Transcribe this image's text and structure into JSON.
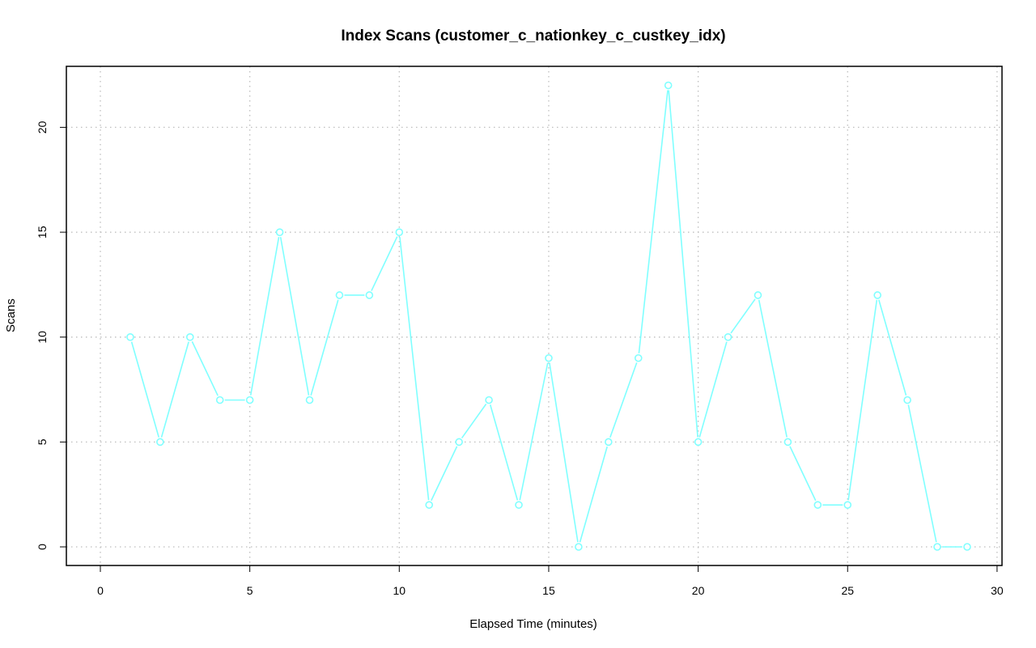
{
  "chart_data": {
    "type": "line",
    "title": "Index Scans (customer_c_nationkey_c_custkey_idx)",
    "xlabel": "Elapsed Time (minutes)",
    "ylabel": "Scans",
    "xlim": [
      0,
      30
    ],
    "ylim": [
      0,
      22
    ],
    "x_ticks": [
      0,
      5,
      10,
      15,
      20,
      25,
      30
    ],
    "y_ticks": [
      0,
      5,
      10,
      15,
      20
    ],
    "grid": true,
    "line_color": "#80ffff",
    "series": [
      {
        "x": [
          1,
          2,
          3,
          4,
          5,
          6,
          7,
          8,
          9,
          10,
          11,
          12,
          13,
          14,
          15,
          16,
          17,
          18,
          19,
          20,
          21,
          22,
          23,
          24,
          25,
          26,
          27,
          28,
          29
        ],
        "values": [
          10,
          5,
          10,
          7,
          7,
          15,
          7,
          12,
          12,
          15,
          2,
          5,
          7,
          2,
          9,
          0,
          5,
          9,
          22,
          5,
          10,
          12,
          5,
          2,
          2,
          12,
          7,
          0,
          0
        ]
      }
    ]
  }
}
